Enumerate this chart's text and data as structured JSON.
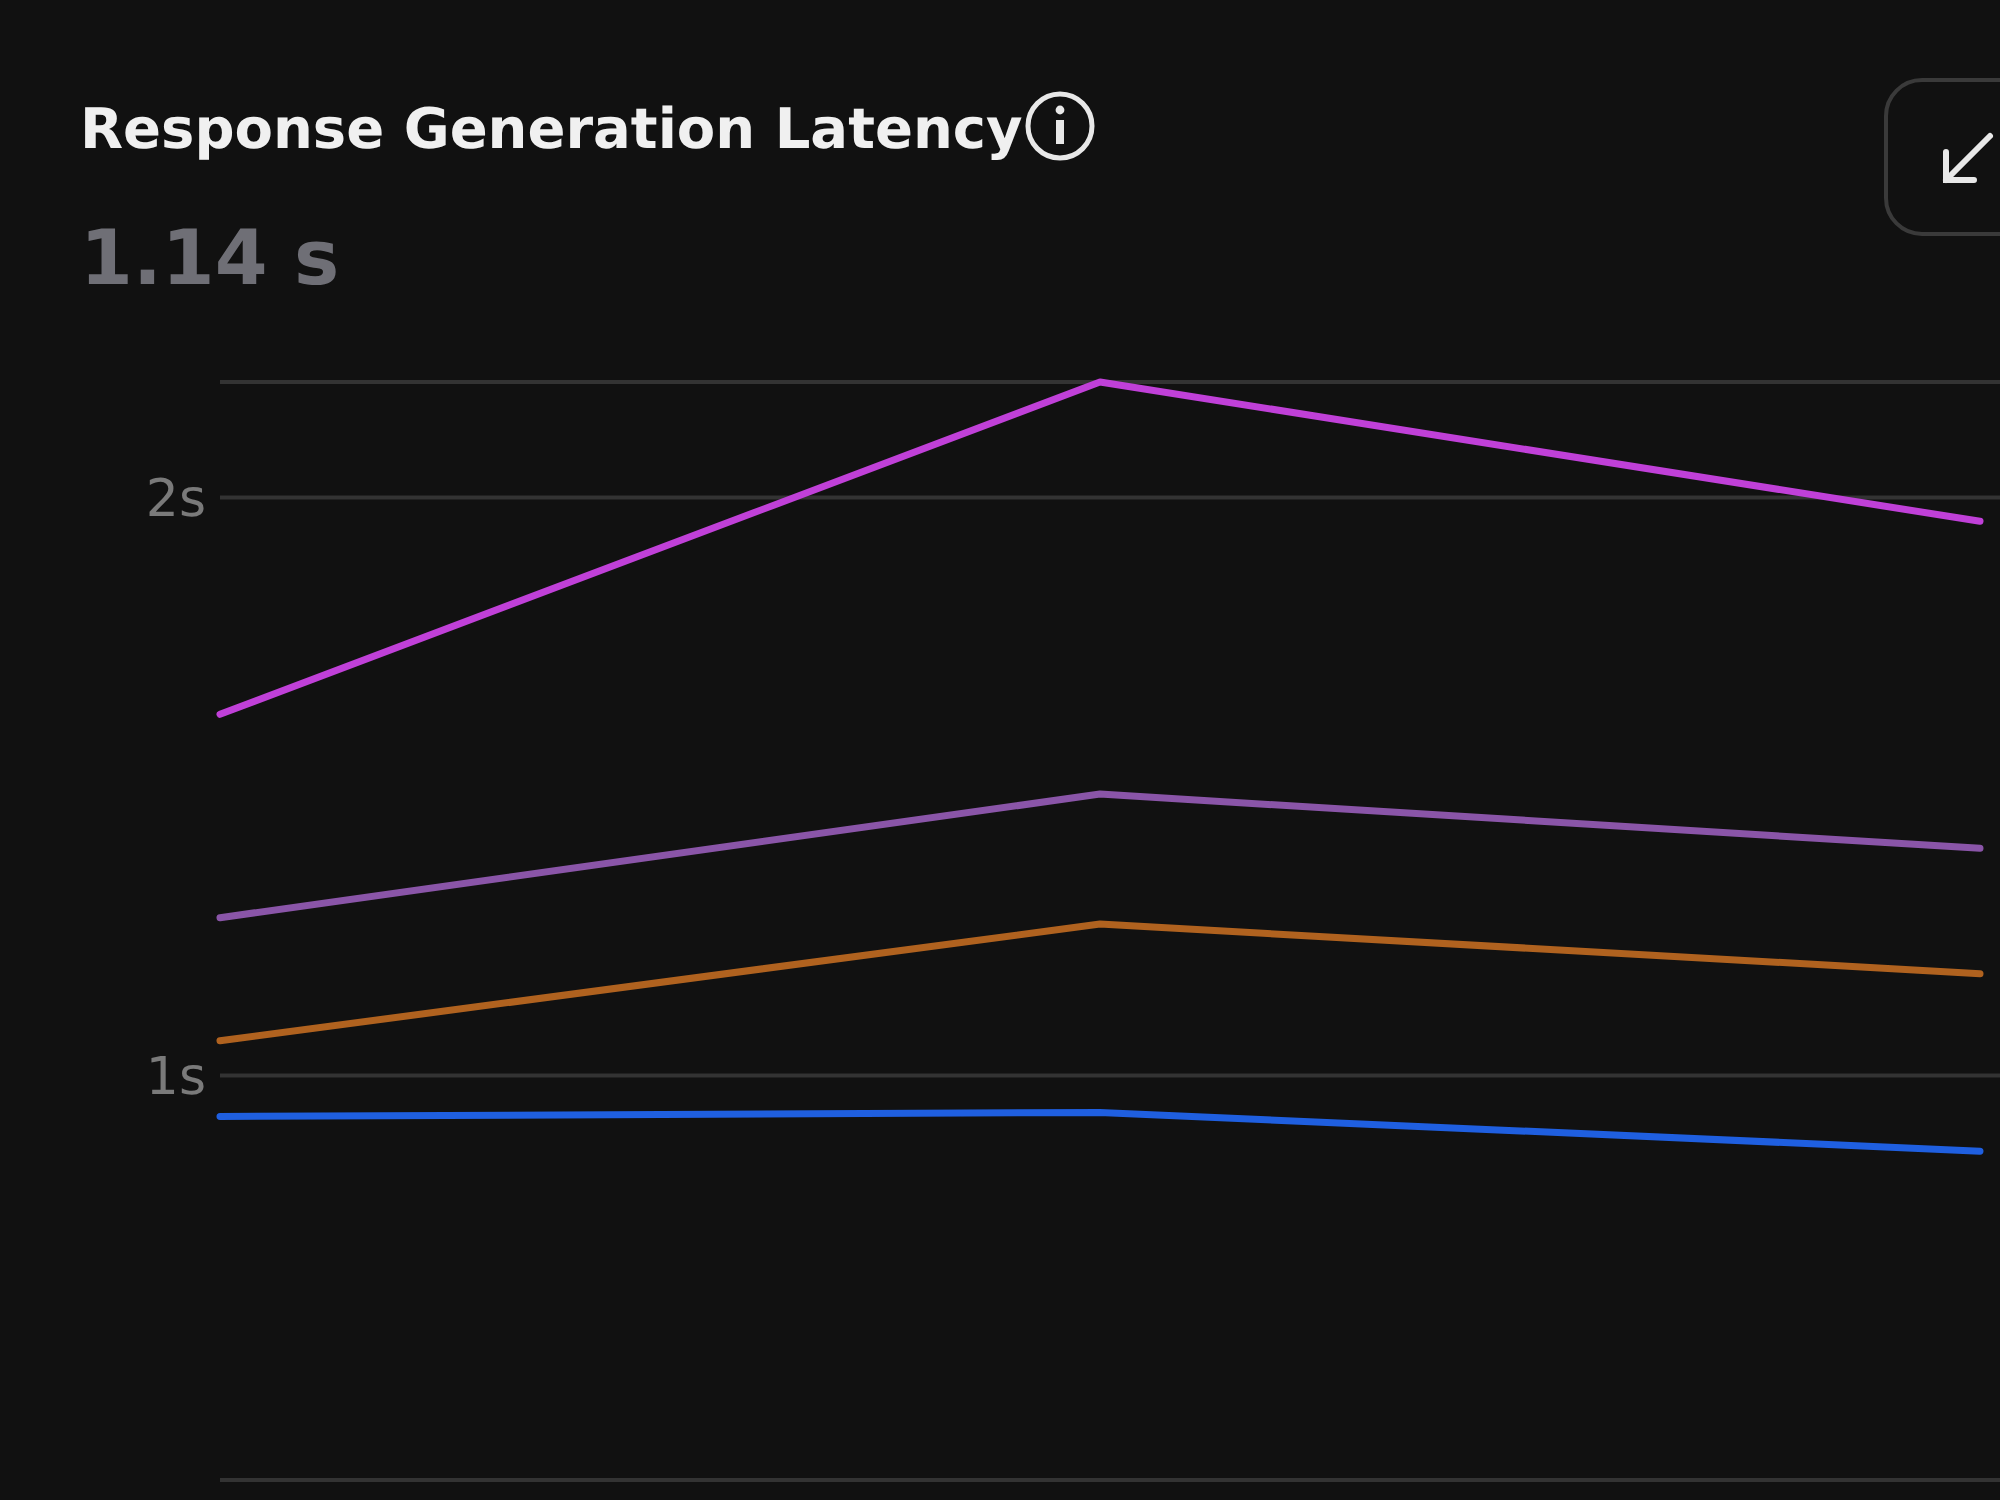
{
  "chart_data": {
    "type": "line",
    "title": "Response Generation Latency",
    "subtitle": "1.14 s",
    "categories": [
      null,
      null,
      null
    ],
    "series": [
      {
        "color": "#c040d8",
        "values": [
          1.625,
          2.2,
          1.959
        ]
      },
      {
        "color": "#8a55a8",
        "values": [
          1.273,
          1.487,
          1.393
        ]
      },
      {
        "color": "#b0621f",
        "values": [
          1.06,
          1.262,
          1.176
        ]
      },
      {
        "color": "#1f5fe0",
        "values": [
          0.929,
          0.936,
          0.869
        ]
      }
    ],
    "ylim": [
      0.3,
      2.2
    ],
    "yticks": [
      {
        "value": 1,
        "label": "1s"
      },
      {
        "value": 2,
        "label": "2s"
      },
      {
        "value": 2.2,
        "label": null
      }
    ],
    "grid": "y",
    "tick_labels": "y"
  }
}
